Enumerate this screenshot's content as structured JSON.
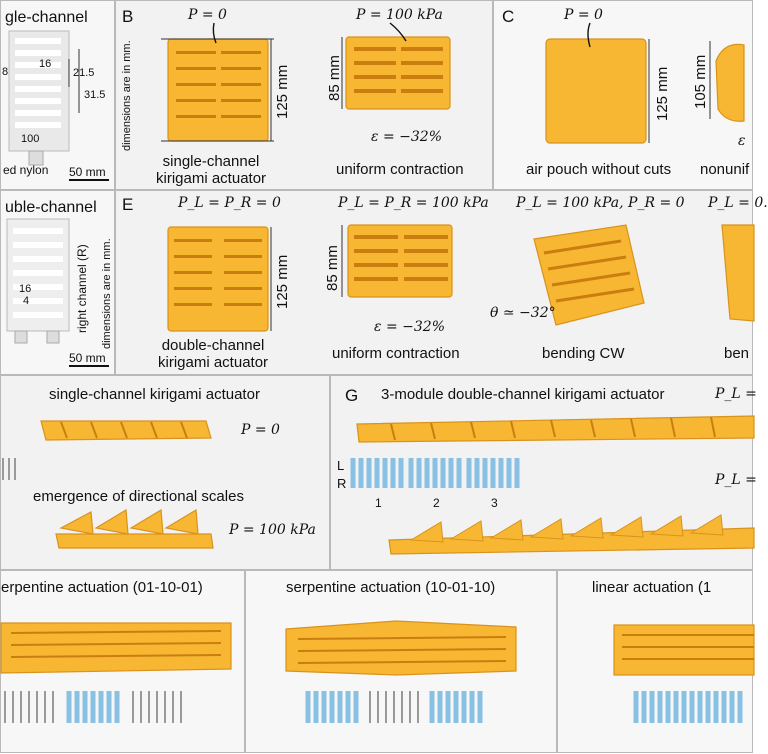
{
  "panels": {
    "A": {
      "title": "gle-channel",
      "dims": [
        "16",
        "21.5",
        "31.5",
        "8",
        "100"
      ],
      "material": "ed nylon",
      "scale": "50 mm"
    },
    "B": {
      "letter": "B",
      "p0": "P = 0",
      "p1": "P = 100 kPa",
      "dim_height": "125 mm",
      "dim_contract": "85 mm",
      "note": "dimensions are in mm.",
      "strain": "ε = −32%",
      "caption_left": "single-channel\nkirigami actuator",
      "caption_right": "uniform contraction"
    },
    "C": {
      "letter": "C",
      "p0": "P = 0",
      "dim_height": "125 mm",
      "dim_right": "105 mm",
      "caption_left": "air pouch without cuts",
      "caption_right": "nonunif",
      "eps_partial": "ε"
    },
    "D": {
      "title": "uble-channel",
      "side": "right channel (R)",
      "note": "dimensions are in mm.",
      "dims": [
        "16",
        "4"
      ],
      "scale": "50 mm"
    },
    "E": {
      "letter": "E",
      "p0": "P_L = P_R = 0",
      "p1": "P_L = P_R = 100 kPa",
      "p2": "P_L = 100 kPa, P_R = 0",
      "p3": "P_L = 0.",
      "dim_height": "125 mm",
      "dim_contract": "85 mm",
      "strain": "ε = −32%",
      "angle": "θ ≃ −32°",
      "caption1": "double-channel\nkirigami actuator",
      "caption2": "uniform contraction",
      "caption3": "bending CW",
      "caption4": "ben"
    },
    "F": {
      "title": "single-channel kirigami actuator",
      "p0": "P = 0",
      "subtitle": "emergence of directional scales",
      "p1": "P = 100 kPa"
    },
    "G": {
      "letter": "G",
      "title": "3-module double-channel kirigami actuator",
      "pl_top": "P_L =",
      "pl_bottom": "P_L =",
      "L": "L",
      "R": "R",
      "modules": [
        "1",
        "2",
        "3"
      ]
    },
    "H": {
      "left": "erpentine actuation (01-10-01)",
      "middle": "serpentine actuation (10-01-10)",
      "right": "linear actuation (1"
    }
  },
  "colors": {
    "actuator": "#f7b732",
    "channel": "#88c1e3",
    "border": "#b9b9b9"
  }
}
